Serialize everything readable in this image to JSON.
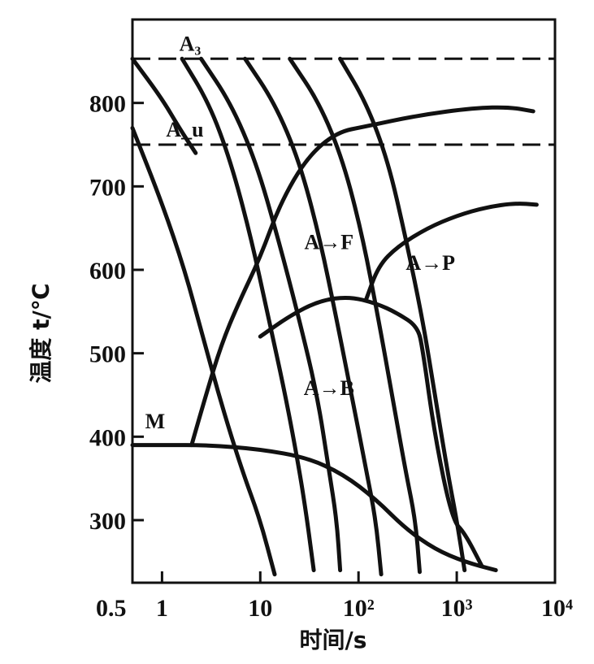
{
  "chart_data": {
    "type": "line",
    "title": "",
    "xlabel": "时间/s",
    "ylabel": "温度 t/℃",
    "x_scale": "log",
    "xlim": [
      0.5,
      10000
    ],
    "ylim": [
      225,
      900
    ],
    "x_ticks": [
      {
        "value": 0.5,
        "label": "0.5"
      },
      {
        "value": 1,
        "label": "1"
      },
      {
        "value": 10,
        "label": "10"
      },
      {
        "value": 100,
        "label": "10²"
      },
      {
        "value": 1000,
        "label": "10³"
      },
      {
        "value": 10000,
        "label": "10⁴"
      }
    ],
    "y_ticks": [
      {
        "value": 300,
        "label": "300"
      },
      {
        "value": 400,
        "label": "400"
      },
      {
        "value": 500,
        "label": "500"
      },
      {
        "value": 600,
        "label": "600"
      },
      {
        "value": 700,
        "label": "700"
      },
      {
        "value": 800,
        "label": "800"
      }
    ],
    "reference_lines": [
      {
        "label": "A₃",
        "y": 853,
        "label_x": 1.5
      },
      {
        "label": "A_u",
        "y": 750,
        "label_x": 1.1
      }
    ],
    "annotations": [
      {
        "text": "A→F",
        "x": 50,
        "y": 625
      },
      {
        "text": "A→P",
        "x": 540,
        "y": 600
      },
      {
        "text": "A→B",
        "x": 50,
        "y": 450
      },
      {
        "text": "M",
        "x": 0.85,
        "y": 410
      }
    ],
    "series": [
      {
        "values": [
          [
            0.5,
            853
          ],
          [
            1.0,
            805
          ],
          [
            1.5,
            770
          ],
          [
            2.2,
            740
          ]
        ]
      },
      {
        "values": [
          [
            0.5,
            770
          ],
          [
            1.0,
            680
          ],
          [
            1.7,
            600
          ],
          [
            2.6,
            520
          ],
          [
            4.0,
            440
          ],
          [
            6.5,
            360
          ],
          [
            10,
            300
          ],
          [
            14,
            235
          ]
        ]
      },
      {
        "values": [
          [
            1.6,
            853
          ],
          [
            3.0,
            800
          ],
          [
            5.0,
            730
          ],
          [
            8.0,
            640
          ],
          [
            12,
            545
          ],
          [
            18,
            450
          ],
          [
            25,
            360
          ],
          [
            30,
            300
          ],
          [
            35,
            240
          ]
        ]
      },
      {
        "values": [
          [
            2.5,
            853
          ],
          [
            5.0,
            800
          ],
          [
            9.0,
            730
          ],
          [
            15,
            640
          ],
          [
            25,
            540
          ],
          [
            38,
            450
          ],
          [
            50,
            360
          ],
          [
            60,
            300
          ],
          [
            65,
            240
          ]
        ]
      },
      {
        "values": [
          [
            7.0,
            853
          ],
          [
            14,
            800
          ],
          [
            25,
            730
          ],
          [
            40,
            640
          ],
          [
            60,
            540
          ],
          [
            85,
            450
          ],
          [
            120,
            360
          ],
          [
            150,
            300
          ],
          [
            170,
            235
          ]
        ]
      },
      {
        "values": [
          [
            20,
            853
          ],
          [
            40,
            800
          ],
          [
            70,
            730
          ],
          [
            110,
            640
          ],
          [
            160,
            540
          ],
          [
            220,
            450
          ],
          [
            300,
            360
          ],
          [
            380,
            300
          ],
          [
            420,
            238
          ]
        ]
      },
      {
        "values": [
          [
            65,
            853
          ],
          [
            120,
            800
          ],
          [
            200,
            730
          ],
          [
            300,
            640
          ],
          [
            450,
            540
          ],
          [
            600,
            450
          ],
          [
            800,
            360
          ],
          [
            1000,
            300
          ],
          [
            1200,
            240
          ]
        ]
      },
      {
        "values": [
          [
            2.0,
            390
          ],
          [
            2.8,
            450
          ],
          [
            4.0,
            510
          ],
          [
            6.0,
            560
          ],
          [
            10,
            615
          ],
          [
            16,
            680
          ],
          [
            30,
            735
          ],
          [
            60,
            765
          ],
          [
            120,
            772
          ],
          [
            400,
            785
          ],
          [
            1500,
            794
          ],
          [
            3500,
            795
          ],
          [
            6000,
            790
          ]
        ]
      },
      {
        "values": [
          [
            120,
            565
          ],
          [
            160,
            605
          ],
          [
            250,
            628
          ],
          [
            500,
            650
          ],
          [
            1000,
            665
          ],
          [
            2000,
            675
          ],
          [
            4000,
            680
          ],
          [
            6500,
            678
          ]
        ]
      },
      {
        "values": [
          [
            0.5,
            390
          ],
          [
            1,
            390
          ],
          [
            3,
            390
          ],
          [
            10,
            385
          ],
          [
            30,
            375
          ],
          [
            70,
            355
          ],
          [
            150,
            325
          ],
          [
            300,
            290
          ],
          [
            600,
            265
          ],
          [
            1200,
            250
          ],
          [
            2500,
            240
          ]
        ]
      },
      {
        "values": [
          [
            10,
            520
          ],
          [
            20,
            545
          ],
          [
            40,
            563
          ],
          [
            80,
            568
          ],
          [
            150,
            560
          ],
          [
            250,
            548
          ],
          [
            400,
            532
          ],
          [
            450,
            505
          ],
          [
            600,
            400
          ],
          [
            900,
            300
          ],
          [
            1200,
            285
          ],
          [
            1800,
            245
          ]
        ]
      }
    ]
  }
}
